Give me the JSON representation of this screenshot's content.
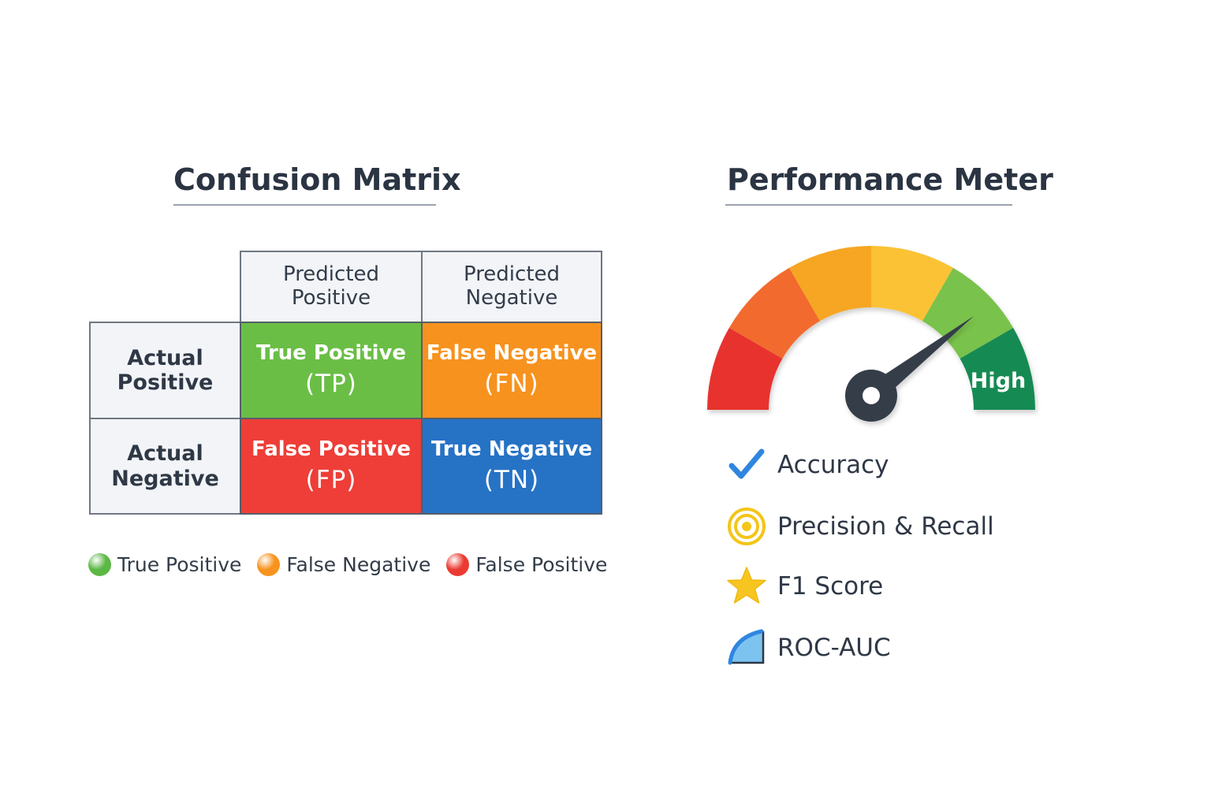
{
  "confusion_matrix": {
    "title": "Confusion Matrix",
    "columns": [
      {
        "line1": "Predicted",
        "line2": "Positive"
      },
      {
        "line1": "Predicted",
        "line2": "Negative"
      }
    ],
    "rows": [
      {
        "line1": "Actual",
        "line2": "Positive"
      },
      {
        "line1": "Actual",
        "line2": "Negative"
      }
    ],
    "cells": [
      {
        "name": "True Positive",
        "abbr": "(TP)",
        "color": "#6abe45"
      },
      {
        "name": "False Negative",
        "abbr": "(FN)",
        "color": "#f7921e"
      },
      {
        "name": "False Positive",
        "abbr": "(FP)",
        "color": "#ee3e37"
      },
      {
        "name": "True Negative",
        "abbr": "(TN)",
        "color": "#2672c5"
      }
    ],
    "legend": [
      {
        "label": "True Positive",
        "color": "#5cb845"
      },
      {
        "label": "False Negative",
        "color": "#f7931e"
      },
      {
        "label": "False Positive",
        "color": "#ea3b32"
      }
    ]
  },
  "performance_meter": {
    "title": "Performance Meter",
    "level_label": "High",
    "needle_fraction": 0.79,
    "segment_colors": [
      "#e8302e",
      "#f26b2e",
      "#f6a621",
      "#fbc234",
      "#79c24b",
      "#138a52"
    ],
    "metrics": [
      {
        "label": "Accuracy",
        "icon": "checkmark-icon"
      },
      {
        "label": "Precision & Recall",
        "icon": "target-icon"
      },
      {
        "label": "F1 Score",
        "icon": "star-icon"
      },
      {
        "label": "ROC-AUC",
        "icon": "roc-curve-icon"
      }
    ]
  }
}
